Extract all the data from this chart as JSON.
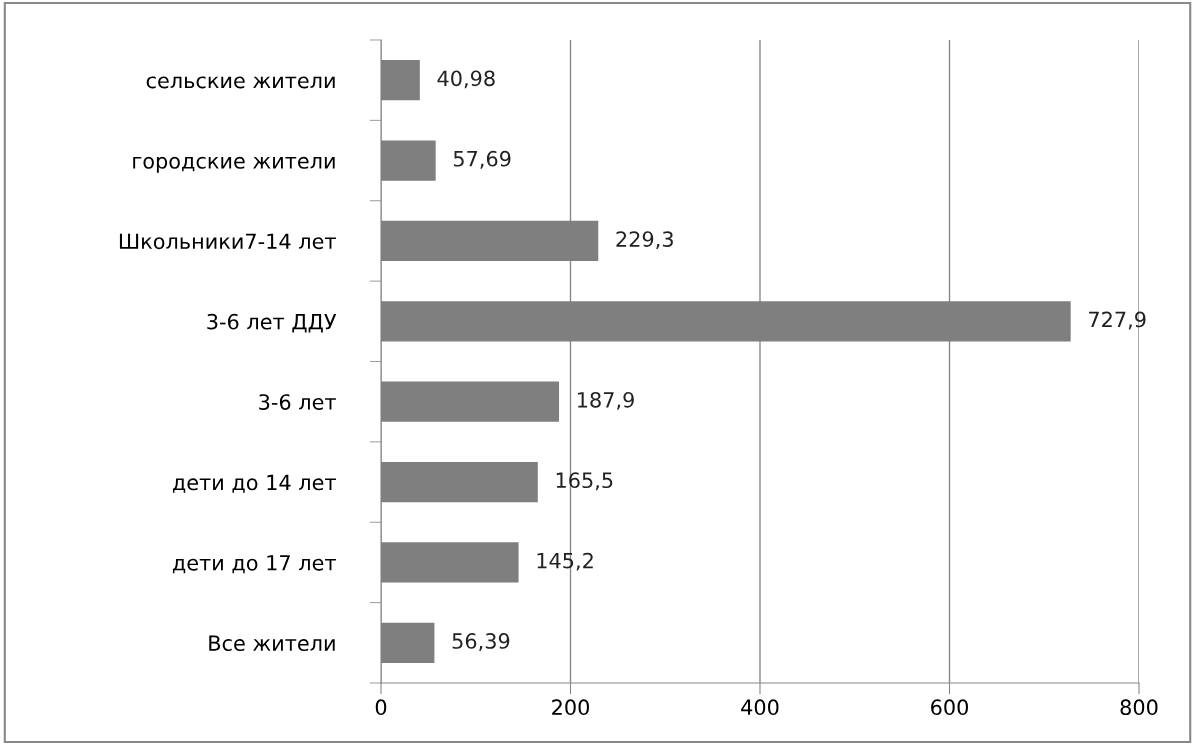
{
  "chart_data": {
    "type": "bar",
    "orientation": "horizontal",
    "categories": [
      "сельские жители",
      "городские жители",
      "Школьники7-14 лет",
      "3-6 лет ДДУ",
      "3-6 лет",
      "дети до 14 лет",
      "дети до 17 лет",
      "Все жители"
    ],
    "values": [
      40.98,
      57.69,
      229.3,
      727.9,
      187.9,
      165.5,
      145.2,
      56.39
    ],
    "value_labels": [
      "40,98",
      "57,69",
      "229,3",
      "727,9",
      "187,9",
      "165,5",
      "145,2",
      "56,39"
    ],
    "color": "#7f7f7f",
    "xlim": [
      0,
      800
    ],
    "xticks": [
      0,
      200,
      400,
      600,
      800
    ],
    "grid": "x"
  }
}
